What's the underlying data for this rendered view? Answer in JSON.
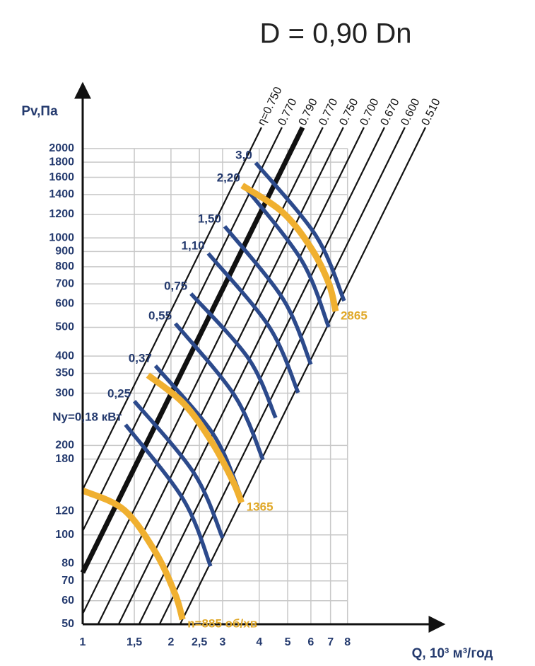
{
  "chart_data": {
    "type": "fan-chart",
    "title": "D = 0,90 Dn",
    "y_label": "Pv,Па",
    "x_label": "Q, 10³ м³/год",
    "log_x": true,
    "log_y": true,
    "grid": true,
    "xlim": [
      1,
      15
    ],
    "ylim": [
      50,
      3000
    ],
    "xticks": [
      1,
      {
        "value": 1.5,
        "label": "1,5"
      },
      2,
      {
        "value": 2.5,
        "label": "2,5"
      },
      3,
      4,
      5,
      6,
      7,
      8
    ],
    "yticks": [
      2000,
      1800,
      1600,
      1400,
      1200,
      1000,
      900,
      800,
      700,
      600,
      500,
      400,
      350,
      300,
      200,
      180,
      120,
      100,
      80,
      70,
      60,
      50
    ],
    "line_color": "#111111",
    "efficiency_lines": [
      {
        "name": "η=0.750",
        "x": [
          1,
          4.07
        ],
        "values": [
          142,
          2356
        ]
      },
      {
        "name": "0.770",
        "x": [
          1,
          4.78
        ],
        "values": [
          103,
          2356
        ]
      },
      {
        "name": "0.790",
        "x": [
          1,
          5.62
        ],
        "values": [
          74.6,
          2356
        ],
        "bold": true
      },
      {
        "name": "0.770",
        "x": [
          1,
          6.59
        ],
        "values": [
          54.2,
          2356
        ]
      },
      {
        "name": "0.750",
        "x": [
          1.128,
          7.74
        ],
        "values": [
          50,
          2356
        ]
      },
      {
        "name": "0.700",
        "x": [
          1.326,
          9.1
        ],
        "values": [
          50,
          2356
        ]
      },
      {
        "name": "0.670",
        "x": [
          1.557,
          10.69
        ],
        "values": [
          50,
          2356
        ]
      },
      {
        "name": "0.600",
        "x": [
          1.829,
          12.55
        ],
        "values": [
          50,
          2356
        ]
      },
      {
        "name": "0.510",
        "x": [
          2.149,
          14.75
        ],
        "values": [
          50,
          2356
        ]
      }
    ],
    "power_color": "#2c4a8c",
    "power_label_color": "#243a6e",
    "power_curves": [
      {
        "name": "Ny=0,18 кВт",
        "x": [
          1.4,
          2.21,
          2.73
        ],
        "values": [
          235,
          131,
          78.4
        ]
      },
      {
        "name": "0,25",
        "x": [
          1.5,
          2.4,
          3.0
        ],
        "values": [
          282,
          161,
          97.6
        ]
      },
      {
        "name": "0,37",
        "x": [
          1.77,
          2.79,
          3.45
        ],
        "values": [
          371,
          218,
          136
        ]
      },
      {
        "name": "0,55",
        "x": [
          2.07,
          3.3,
          4.12
        ],
        "values": [
          515,
          294,
          179
        ]
      },
      {
        "name": "0,75",
        "x": [
          2.34,
          3.68,
          4.55
        ],
        "values": [
          649,
          392,
          248
        ]
      },
      {
        "name": "1,10",
        "x": [
          2.68,
          4.33,
          5.43
        ],
        "values": [
          887,
          501,
          301
        ]
      },
      {
        "name": "1,50",
        "x": [
          3.05,
          4.83,
          6.0
        ],
        "values": [
          1094,
          621,
          375
        ]
      },
      {
        "name": "2,20",
        "x": [
          3.54,
          5.58,
          6.9
        ],
        "values": [
          1502,
          840,
          501
        ]
      },
      {
        "name": "3,0",
        "x": [
          3.89,
          6.24,
          7.79
        ],
        "values": [
          1791,
          1018,
          614
        ]
      }
    ],
    "speed_color": "#f0b030",
    "speed_label_color": "#e0a828",
    "speed_curves": [
      {
        "name": "n=885 об/хв",
        "x": [
          1,
          1.38,
          1.77,
          2.07,
          2.19
        ],
        "values": [
          141,
          121.6,
          87.5,
          62.9,
          51.9
        ]
      },
      {
        "name": "1365",
        "x": [
          1.67,
          2.21,
          2.76,
          3.26,
          3.48
        ],
        "values": [
          345,
          277,
          205,
          151,
          128.5
        ]
      },
      {
        "name": "2865",
        "x": [
          3.5,
          4.81,
          6.0,
          6.9,
          7.29
        ],
        "values": [
          1502,
          1219,
          927,
          705,
          566
        ]
      }
    ]
  }
}
